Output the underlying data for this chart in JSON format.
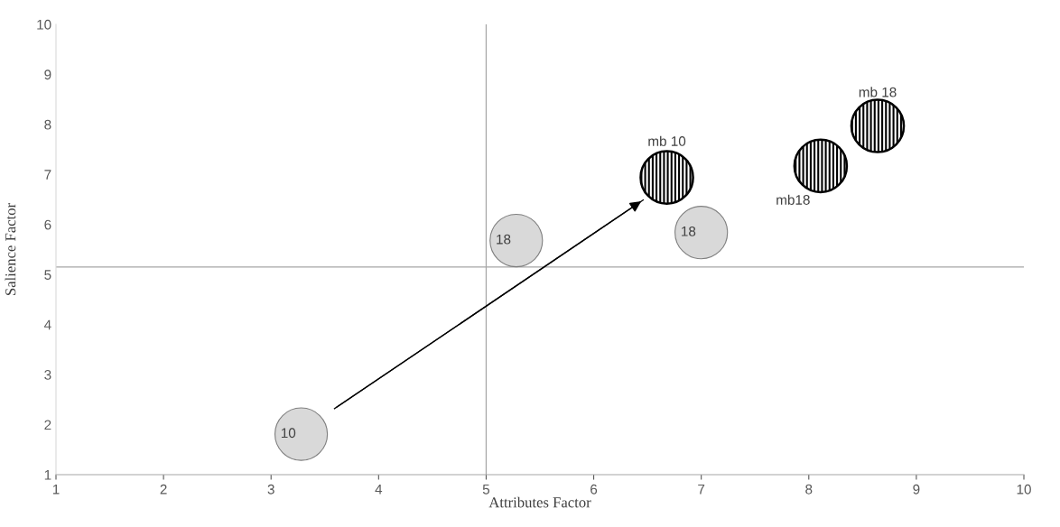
{
  "chart_data": {
    "type": "bubble",
    "xlabel": "Attributes Factor",
    "ylabel": "Salience Factor",
    "xlim": [
      1,
      10
    ],
    "xticks": [
      1,
      2,
      3,
      4,
      5,
      6,
      7,
      8,
      9,
      10
    ],
    "ylim": [
      1,
      10
    ],
    "yticks": [
      1,
      2,
      3,
      4,
      5,
      6,
      7,
      8,
      9,
      10
    ],
    "grid": false,
    "legend": false,
    "series": [
      {
        "color": "#d9d9d9",
        "x": [
          3.28,
          5.28,
          7.0
        ],
        "values": [
          1.81,
          5.68,
          5.84
        ],
        "sizes": [
          1,
          1,
          1
        ]
      },
      {
        "color": "#000000",
        "x": [
          6.68,
          8.11,
          8.64
        ],
        "values": [
          6.94,
          7.17,
          7.97
        ],
        "sizes": [
          1,
          1,
          1
        ]
      },
      {
        "type": "line",
        "color": "#000000",
        "x": [
          3.59,
          6.46
        ],
        "values": [
          2.32,
          6.49
        ]
      }
    ],
    "ref_lines": [
      {
        "axis": "x",
        "value": 5,
        "color": "#a6a6a6"
      },
      {
        "axis": "y",
        "value": 5.15,
        "color": "#a6a6a6"
      }
    ],
    "annotations": [
      {
        "text": "10",
        "x": 3.28,
        "y": 1.81
      },
      {
        "text": "18",
        "x": 5.28,
        "y": 5.68
      },
      {
        "text": "18",
        "x": 7.0,
        "y": 5.84
      },
      {
        "text": "mb 10",
        "x": 6.68,
        "y": 6.94
      },
      {
        "text": "mb18",
        "x": 8.11,
        "y": 7.17
      },
      {
        "text": "mb 18",
        "x": 8.64,
        "y": 7.97
      }
    ]
  }
}
